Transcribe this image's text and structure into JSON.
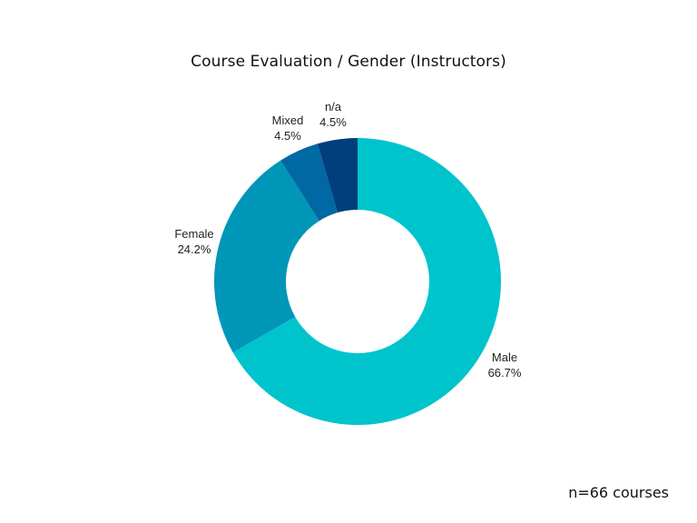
{
  "chart_data": {
    "type": "pie",
    "title": "Course Evaluation / Gender (Instructors)",
    "donut": true,
    "slices": [
      {
        "label": "Male",
        "value": 66.7,
        "value_label": "66.7%",
        "color": "#00c4cc"
      },
      {
        "label": "Female",
        "value": 24.2,
        "value_label": "24.2%",
        "color": "#0096b8"
      },
      {
        "label": "Mixed",
        "value": 4.5,
        "value_label": "4.5%",
        "color": "#0068a3"
      },
      {
        "label": "n/a",
        "value": 4.5,
        "value_label": "4.5%",
        "color": "#003f7c"
      }
    ]
  },
  "footnote": "n=66 courses"
}
